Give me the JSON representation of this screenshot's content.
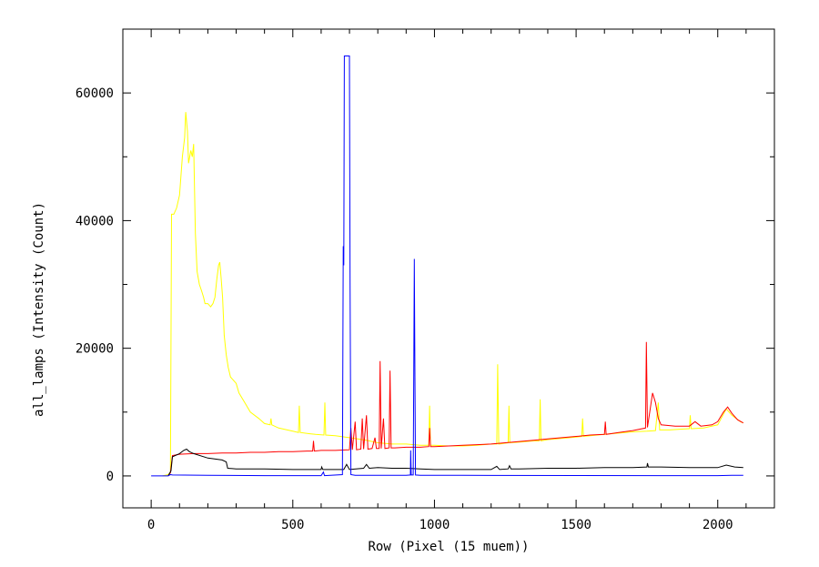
{
  "chart_data": {
    "type": "line",
    "title": "",
    "xlabel": "Row (Pixel (15 muem))",
    "ylabel": "all_lamps (Intensity (Count)",
    "xlim": [
      -100,
      2200
    ],
    "ylim": [
      -5000,
      70000
    ],
    "xticks": [
      0,
      500,
      1000,
      1500,
      2000
    ],
    "yticks": [
      0,
      20000,
      40000,
      60000
    ],
    "grid": false,
    "legend": "none",
    "series": [
      {
        "color": "#ffff00",
        "points": [
          [
            40,
            0
          ],
          [
            60,
            200
          ],
          [
            68,
            600
          ],
          [
            72,
            41000
          ],
          [
            80,
            41000
          ],
          [
            90,
            42000
          ],
          [
            100,
            44000
          ],
          [
            110,
            50000
          ],
          [
            118,
            53000
          ],
          [
            122,
            57000
          ],
          [
            128,
            54000
          ],
          [
            132,
            49000
          ],
          [
            140,
            51000
          ],
          [
            145,
            50000
          ],
          [
            150,
            52000
          ],
          [
            156,
            38000
          ],
          [
            162,
            32000
          ],
          [
            170,
            30000
          ],
          [
            178,
            29000
          ],
          [
            185,
            28000
          ],
          [
            190,
            27000
          ],
          [
            200,
            27000
          ],
          [
            210,
            26500
          ],
          [
            218,
            27000
          ],
          [
            225,
            28000
          ],
          [
            232,
            31000
          ],
          [
            238,
            33000
          ],
          [
            242,
            33500
          ],
          [
            247,
            31000
          ],
          [
            252,
            28000
          ],
          [
            258,
            22000
          ],
          [
            265,
            19000
          ],
          [
            272,
            17000
          ],
          [
            280,
            15500
          ],
          [
            290,
            15000
          ],
          [
            300,
            14500
          ],
          [
            310,
            13000
          ],
          [
            330,
            11500
          ],
          [
            350,
            10000
          ],
          [
            380,
            9000
          ],
          [
            400,
            8200
          ],
          [
            420,
            8000
          ],
          [
            423,
            9000
          ],
          [
            426,
            8000
          ],
          [
            450,
            7500
          ],
          [
            480,
            7200
          ],
          [
            500,
            7000
          ],
          [
            520,
            6800
          ],
          [
            523,
            11000
          ],
          [
            526,
            6800
          ],
          [
            560,
            6600
          ],
          [
            580,
            6500
          ],
          [
            610,
            6400
          ],
          [
            613,
            11500
          ],
          [
            616,
            6400
          ],
          [
            650,
            6300
          ],
          [
            700,
            6000
          ],
          [
            760,
            5600
          ],
          [
            800,
            5200
          ],
          [
            850,
            5000
          ],
          [
            900,
            5000
          ],
          [
            950,
            4800
          ],
          [
            980,
            4800
          ],
          [
            983,
            11000
          ],
          [
            986,
            4800
          ],
          [
            1000,
            4800
          ],
          [
            1050,
            4700
          ],
          [
            1100,
            4700
          ],
          [
            1150,
            4800
          ],
          [
            1200,
            5000
          ],
          [
            1220,
            5000
          ],
          [
            1223,
            17500
          ],
          [
            1227,
            5000
          ],
          [
            1260,
            5200
          ],
          [
            1263,
            11000
          ],
          [
            1266,
            5200
          ],
          [
            1300,
            5300
          ],
          [
            1350,
            5500
          ],
          [
            1370,
            5500
          ],
          [
            1373,
            12000
          ],
          [
            1376,
            5500
          ],
          [
            1400,
            5700
          ],
          [
            1450,
            5900
          ],
          [
            1500,
            6100
          ],
          [
            1520,
            6200
          ],
          [
            1523,
            9000
          ],
          [
            1526,
            6200
          ],
          [
            1550,
            6300
          ],
          [
            1600,
            6500
          ],
          [
            1650,
            6700
          ],
          [
            1700,
            6900
          ],
          [
            1750,
            7000
          ],
          [
            1780,
            7100
          ],
          [
            1790,
            11500
          ],
          [
            1795,
            7200
          ],
          [
            1830,
            7200
          ],
          [
            1860,
            7300
          ],
          [
            1900,
            7400
          ],
          [
            1903,
            9500
          ],
          [
            1906,
            7400
          ],
          [
            1950,
            7500
          ],
          [
            2000,
            8000
          ],
          [
            2030,
            10500
          ],
          [
            2050,
            9500
          ],
          [
            2080,
            8500
          ],
          [
            2090,
            8300
          ]
        ]
      },
      {
        "color": "#ff0000",
        "points": [
          [
            60,
            0
          ],
          [
            68,
            500
          ],
          [
            75,
            3200
          ],
          [
            100,
            3400
          ],
          [
            150,
            3500
          ],
          [
            200,
            3500
          ],
          [
            250,
            3600
          ],
          [
            300,
            3600
          ],
          [
            350,
            3700
          ],
          [
            400,
            3700
          ],
          [
            450,
            3800
          ],
          [
            500,
            3800
          ],
          [
            550,
            3900
          ],
          [
            570,
            3900
          ],
          [
            573,
            5500
          ],
          [
            576,
            3900
          ],
          [
            600,
            4000
          ],
          [
            650,
            4000
          ],
          [
            700,
            4100
          ],
          [
            705,
            7500
          ],
          [
            710,
            4100
          ],
          [
            720,
            8500
          ],
          [
            725,
            4100
          ],
          [
            740,
            4200
          ],
          [
            745,
            9000
          ],
          [
            750,
            4200
          ],
          [
            760,
            9500
          ],
          [
            765,
            4200
          ],
          [
            780,
            4300
          ],
          [
            790,
            6000
          ],
          [
            795,
            4300
          ],
          [
            805,
            4300
          ],
          [
            808,
            18000
          ],
          [
            812,
            4300
          ],
          [
            820,
            9000
          ],
          [
            825,
            4300
          ],
          [
            840,
            4400
          ],
          [
            843,
            16500
          ],
          [
            847,
            4400
          ],
          [
            860,
            4400
          ],
          [
            900,
            4500
          ],
          [
            950,
            4500
          ],
          [
            980,
            4600
          ],
          [
            983,
            7500
          ],
          [
            986,
            4600
          ],
          [
            1000,
            4600
          ],
          [
            1050,
            4700
          ],
          [
            1100,
            4800
          ],
          [
            1150,
            4900
          ],
          [
            1200,
            5000
          ],
          [
            1250,
            5200
          ],
          [
            1300,
            5400
          ],
          [
            1350,
            5600
          ],
          [
            1400,
            5800
          ],
          [
            1450,
            6000
          ],
          [
            1500,
            6200
          ],
          [
            1550,
            6400
          ],
          [
            1600,
            6500
          ],
          [
            1603,
            8500
          ],
          [
            1606,
            6500
          ],
          [
            1650,
            6800
          ],
          [
            1700,
            7100
          ],
          [
            1745,
            7500
          ],
          [
            1748,
            21000
          ],
          [
            1752,
            7600
          ],
          [
            1760,
            10000
          ],
          [
            1770,
            13000
          ],
          [
            1780,
            11500
          ],
          [
            1790,
            9000
          ],
          [
            1800,
            8000
          ],
          [
            1850,
            7800
          ],
          [
            1900,
            7800
          ],
          [
            1920,
            8500
          ],
          [
            1940,
            7800
          ],
          [
            1980,
            8000
          ],
          [
            2000,
            8500
          ],
          [
            2020,
            10000
          ],
          [
            2035,
            10800
          ],
          [
            2050,
            9800
          ],
          [
            2070,
            8800
          ],
          [
            2090,
            8300
          ]
        ]
      },
      {
        "color": "#000000",
        "points": [
          [
            60,
            0
          ],
          [
            70,
            800
          ],
          [
            75,
            3000
          ],
          [
            100,
            3500
          ],
          [
            115,
            4000
          ],
          [
            125,
            4200
          ],
          [
            135,
            3800
          ],
          [
            150,
            3500
          ],
          [
            200,
            2800
          ],
          [
            250,
            2500
          ],
          [
            265,
            2200
          ],
          [
            270,
            1200
          ],
          [
            300,
            1100
          ],
          [
            400,
            1100
          ],
          [
            500,
            1000
          ],
          [
            600,
            1000
          ],
          [
            602,
            1400
          ],
          [
            606,
            1000
          ],
          [
            680,
            1000
          ],
          [
            690,
            1800
          ],
          [
            700,
            1000
          ],
          [
            750,
            1200
          ],
          [
            760,
            1800
          ],
          [
            770,
            1200
          ],
          [
            800,
            1300
          ],
          [
            850,
            1200
          ],
          [
            900,
            1200
          ],
          [
            950,
            1100
          ],
          [
            1000,
            1000
          ],
          [
            1100,
            1000
          ],
          [
            1200,
            1000
          ],
          [
            1220,
            1500
          ],
          [
            1230,
            1000
          ],
          [
            1260,
            1100
          ],
          [
            1265,
            1600
          ],
          [
            1270,
            1100
          ],
          [
            1300,
            1100
          ],
          [
            1400,
            1200
          ],
          [
            1500,
            1200
          ],
          [
            1600,
            1300
          ],
          [
            1700,
            1300
          ],
          [
            1750,
            1400
          ],
          [
            1752,
            2000
          ],
          [
            1755,
            1400
          ],
          [
            1800,
            1400
          ],
          [
            1900,
            1300
          ],
          [
            2000,
            1300
          ],
          [
            2030,
            1700
          ],
          [
            2060,
            1400
          ],
          [
            2090,
            1300
          ]
        ]
      },
      {
        "color": "#0000ff",
        "points": [
          [
            0,
            0
          ],
          [
            60,
            0
          ],
          [
            68,
            200
          ],
          [
            75,
            150
          ],
          [
            200,
            100
          ],
          [
            400,
            50
          ],
          [
            600,
            50
          ],
          [
            608,
            600
          ],
          [
            612,
            50
          ],
          [
            675,
            200
          ],
          [
            678,
            36000
          ],
          [
            680,
            33000
          ],
          [
            682,
            65800
          ],
          [
            700,
            65800
          ],
          [
            702,
            30000
          ],
          [
            705,
            200
          ],
          [
            720,
            100
          ],
          [
            800,
            100
          ],
          [
            900,
            100
          ],
          [
            915,
            150
          ],
          [
            916,
            4000
          ],
          [
            918,
            150
          ],
          [
            925,
            150
          ],
          [
            927,
            16000
          ],
          [
            929,
            34000
          ],
          [
            931,
            15000
          ],
          [
            933,
            150
          ],
          [
            950,
            100
          ],
          [
            1000,
            100
          ],
          [
            1200,
            80
          ],
          [
            1500,
            60
          ],
          [
            1800,
            50
          ],
          [
            2000,
            50
          ],
          [
            2050,
            100
          ],
          [
            2090,
            100
          ]
        ]
      }
    ]
  }
}
